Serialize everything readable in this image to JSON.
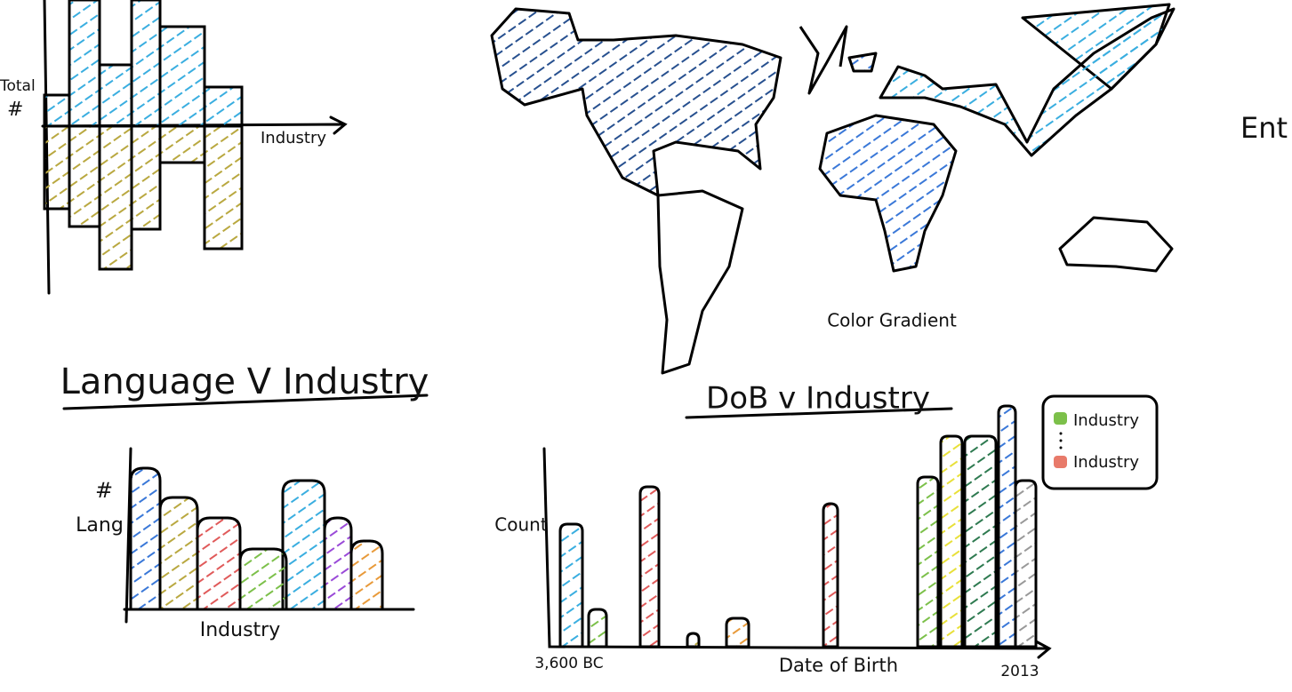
{
  "top_left_chart": {
    "y_label_lines": [
      "Total",
      "#"
    ],
    "x_label": "Industry"
  },
  "map": {
    "caption": "Color Gradient"
  },
  "cut_off_text": "Ent",
  "language_chart": {
    "title": "Language V Industry",
    "y_label_lines": [
      "#",
      "Lang"
    ],
    "x_label": "Industry"
  },
  "dob_chart": {
    "title": "DoB v Industry",
    "y_label": "Count",
    "x_label": "Date of Birth",
    "x_start": "3,600 BC",
    "x_end": "2013",
    "legend": [
      "Industry",
      "Industry"
    ]
  }
}
